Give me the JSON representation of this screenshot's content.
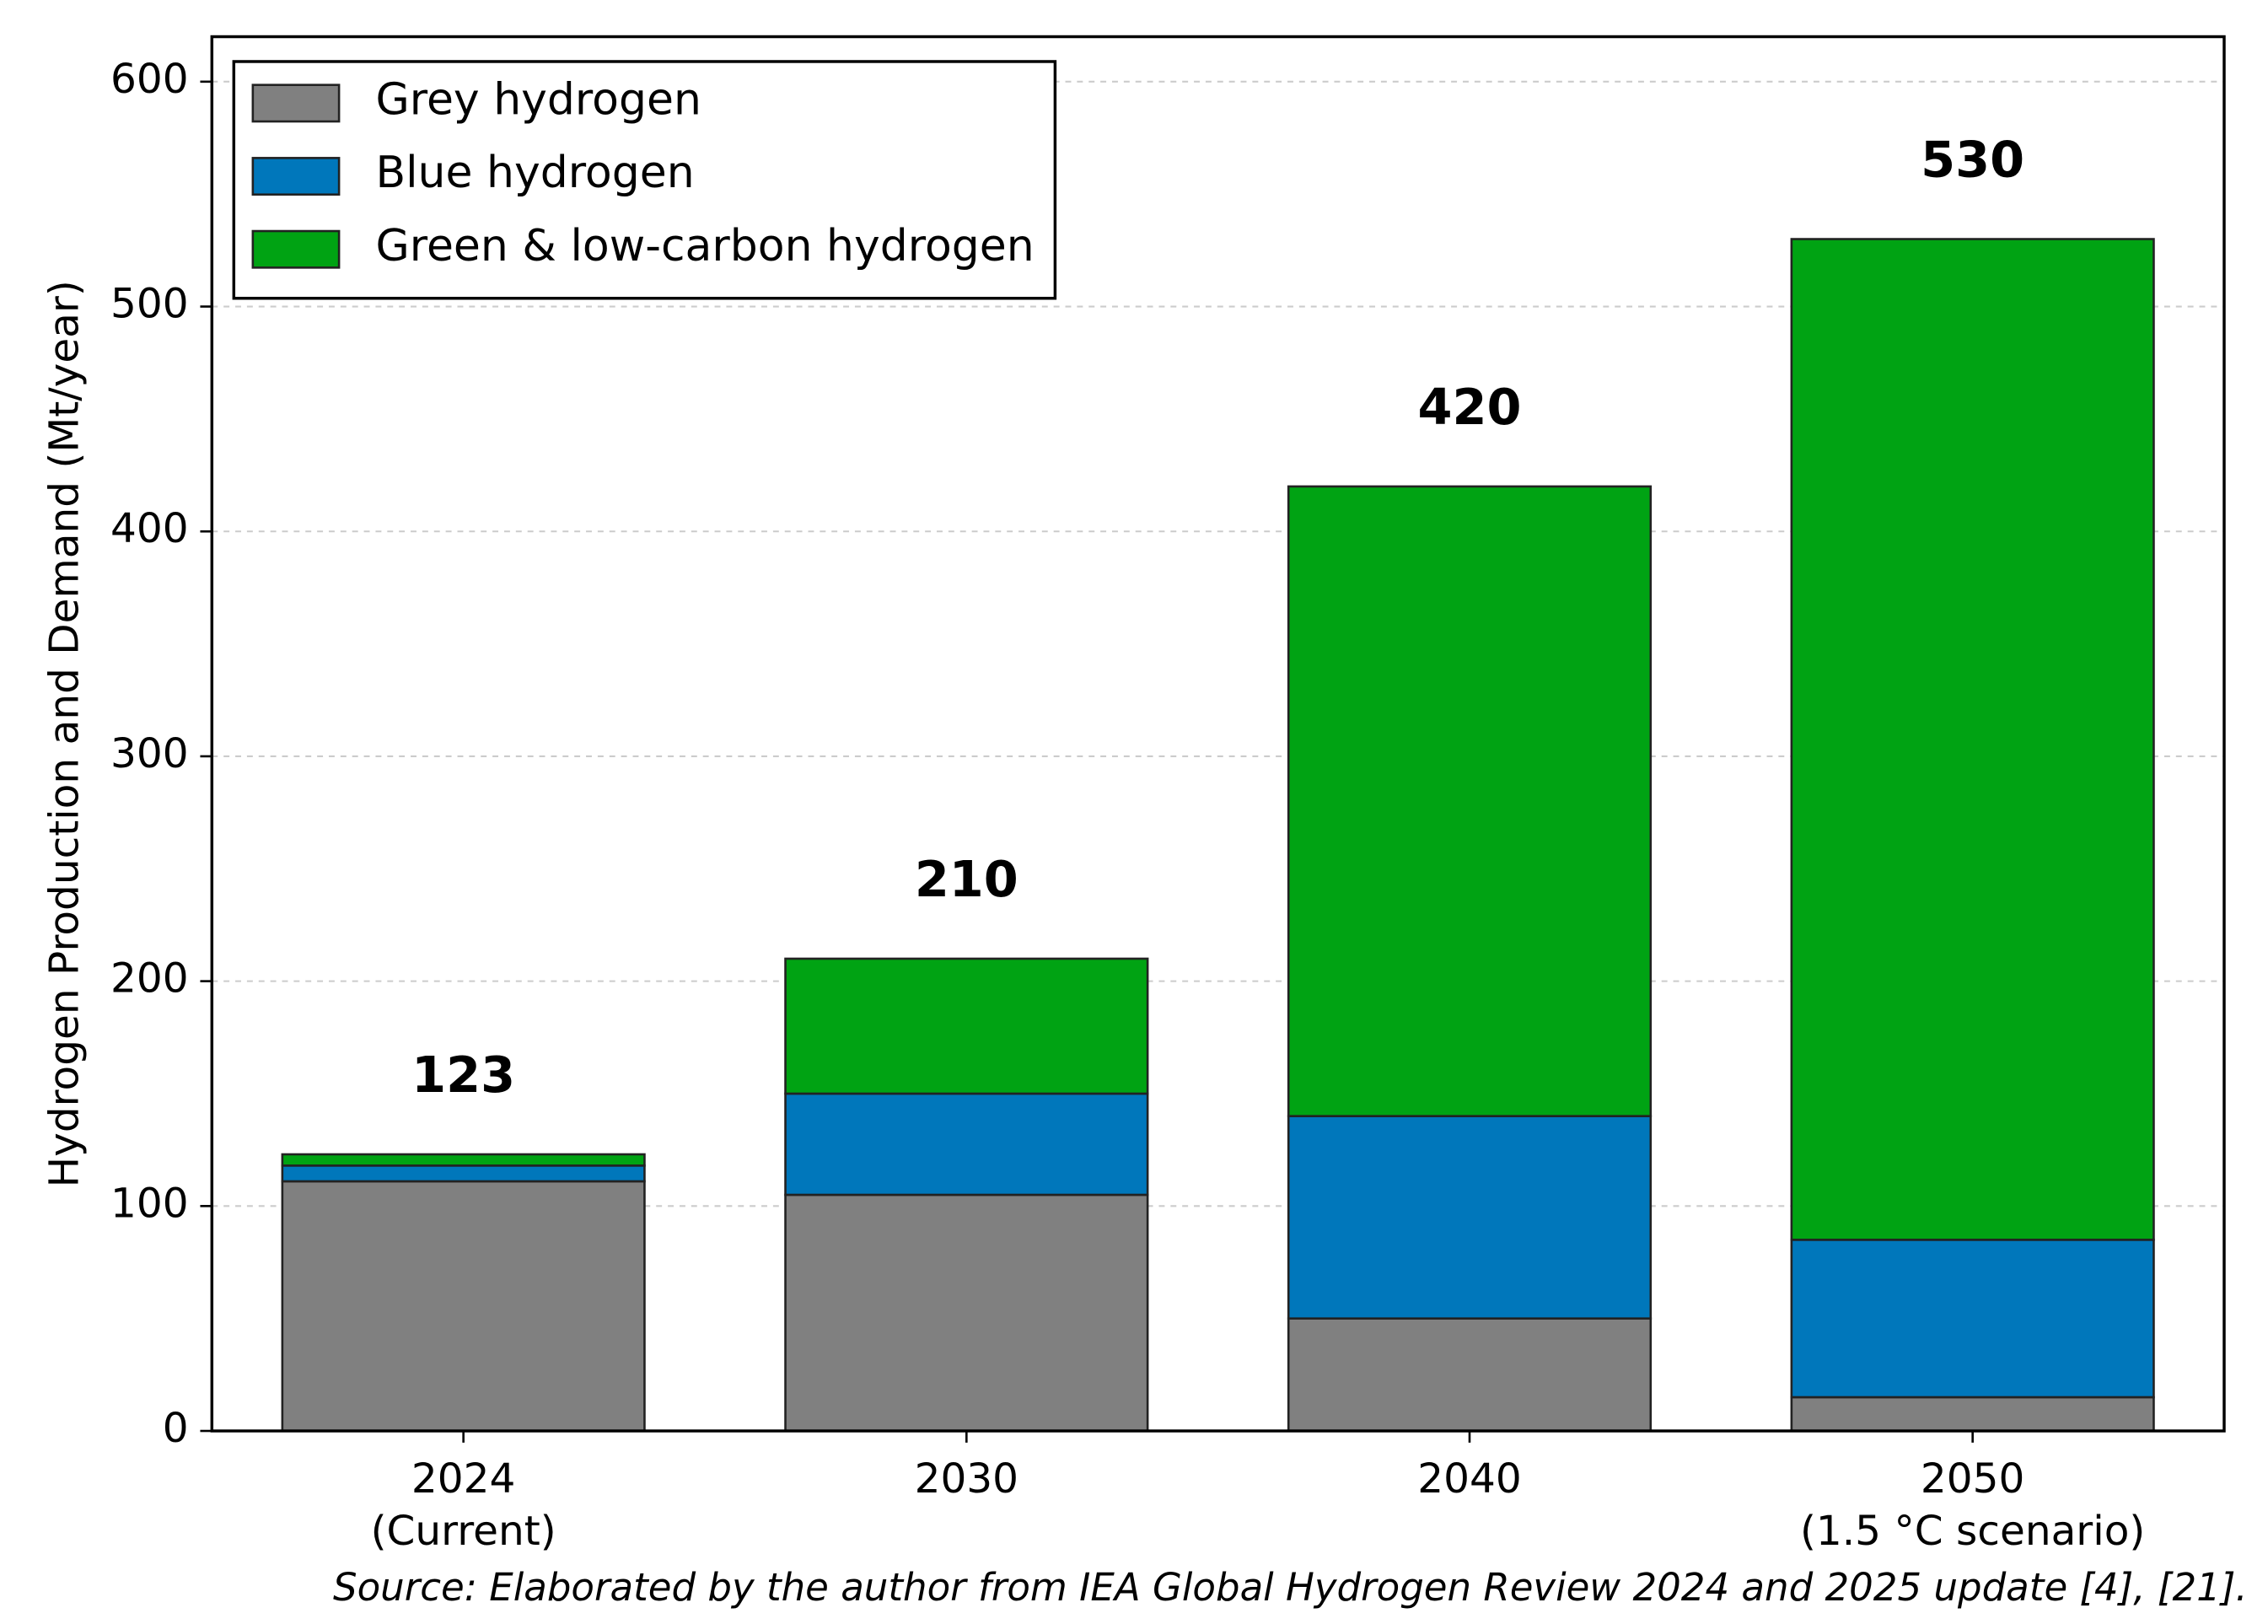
{
  "chart_data": {
    "type": "stacked-bar",
    "ylabel": "Hydrogen Production and Demand (Mt/year)",
    "categories": [
      "2024\n(Current)",
      "2030",
      "2040",
      "2050\n(1.5 °C scenario)"
    ],
    "series": [
      {
        "name": "Grey hydrogen",
        "color": "#808080",
        "values": [
          111,
          105,
          50,
          15
        ]
      },
      {
        "name": "Blue hydrogen",
        "color": "#0077bb",
        "values": [
          7,
          45,
          90,
          70
        ]
      },
      {
        "name": "Green & low-carbon hydrogen",
        "color": "#00a313",
        "values": [
          5,
          60,
          280,
          445
        ]
      }
    ],
    "totals": [
      123,
      210,
      420,
      530
    ],
    "ylim": [
      0,
      620
    ],
    "yticks": [
      0,
      100,
      200,
      300,
      400,
      500,
      600
    ],
    "grid": true,
    "legend": "upper left",
    "source": "Source: Elaborated by the author from IEA Global Hydrogen Review 2024 and 2025 update [4], [21]."
  }
}
